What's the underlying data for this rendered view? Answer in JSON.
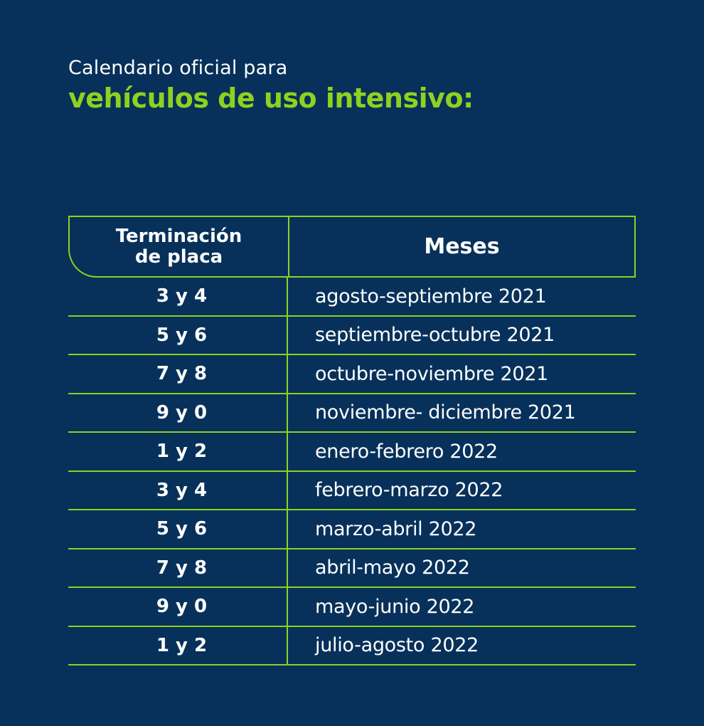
{
  "header": {
    "subtitle": "Calendario oficial para",
    "title": "vehículos de uso intensivo:"
  },
  "table": {
    "col_a_header": "Terminación\nde placa",
    "col_b_header": "Meses",
    "rows": [
      {
        "placa": "3 y 4",
        "meses": "agosto-septiembre 2021"
      },
      {
        "placa": "5 y 6",
        "meses": "septiembre-octubre 2021"
      },
      {
        "placa": "7 y 8",
        "meses": "octubre-noviembre 2021"
      },
      {
        "placa": "9 y 0",
        "meses": "noviembre- diciembre 2021"
      },
      {
        "placa": "1 y 2",
        "meses": "enero-febrero 2022"
      },
      {
        "placa": "3 y 4",
        "meses": "febrero-marzo 2022"
      },
      {
        "placa": "5 y 6",
        "meses": "marzo-abril 2022"
      },
      {
        "placa": "7 y 8",
        "meses": "abril-mayo 2022"
      },
      {
        "placa": "9 y 0",
        "meses": "mayo-junio 2022"
      },
      {
        "placa": "1 y 2",
        "meses": "julio-agosto 2022"
      }
    ]
  },
  "colors": {
    "background": "#07315a",
    "accent": "#8fd11f",
    "text": "#ffffff"
  }
}
